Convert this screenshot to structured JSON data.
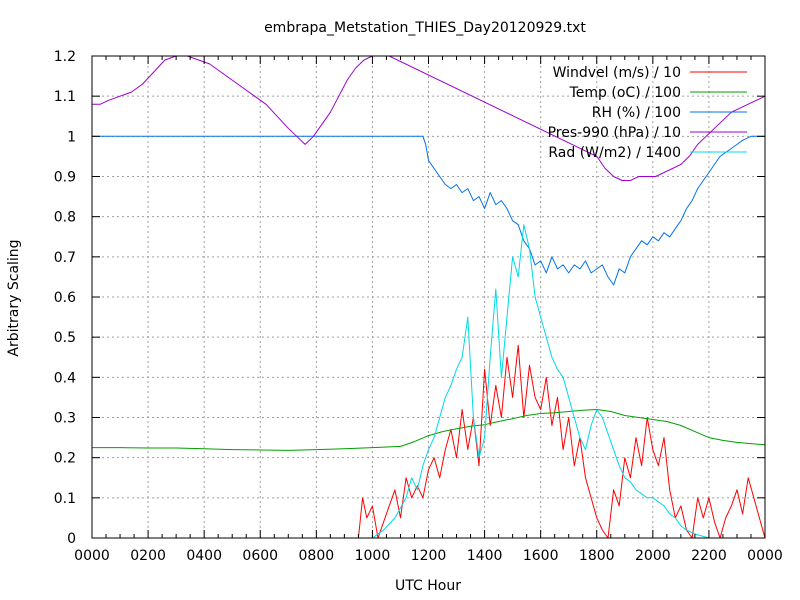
{
  "chart_data": {
    "type": "line",
    "title": "embrapa_Metstation_THIES_Day20120929.txt",
    "xlabel": "UTC Hour",
    "ylabel": "Arbitrary Scaling",
    "xlim": [
      0,
      24
    ],
    "ylim": [
      0,
      1.2
    ],
    "grid": true,
    "legend_position": "top-right",
    "x_ticks": [
      0,
      2,
      4,
      6,
      8,
      10,
      12,
      14,
      16,
      18,
      20,
      22,
      24
    ],
    "x_tick_labels": [
      "0000",
      "0200",
      "0400",
      "0600",
      "0800",
      "1000",
      "1200",
      "1400",
      "1600",
      "1800",
      "2000",
      "2200",
      "0000"
    ],
    "y_ticks": [
      0,
      0.1,
      0.2,
      0.3,
      0.4,
      0.5,
      0.6,
      0.7,
      0.8,
      0.9,
      1,
      1.1,
      1.2
    ],
    "y_tick_labels": [
      "0",
      "0.1",
      "0.2",
      "0.3",
      "0.4",
      "0.5",
      "0.6",
      "0.7",
      "0.8",
      "0.9",
      "1",
      "1.1",
      "1.2"
    ],
    "series": [
      {
        "name": "Windvel (m/s) / 10",
        "color": "#ff0000",
        "x": [
          9.5,
          9.65,
          9.8,
          10.0,
          10.2,
          10.5,
          10.8,
          11.0,
          11.2,
          11.4,
          11.6,
          11.8,
          12.0,
          12.2,
          12.4,
          12.6,
          12.8,
          13.0,
          13.2,
          13.4,
          13.6,
          13.8,
          14.0,
          14.2,
          14.4,
          14.6,
          14.8,
          15.0,
          15.2,
          15.4,
          15.6,
          15.8,
          16.0,
          16.2,
          16.4,
          16.6,
          16.8,
          17.0,
          17.2,
          17.4,
          17.6,
          17.8,
          18.0,
          18.2,
          18.4,
          18.6,
          18.8,
          19.0,
          19.2,
          19.4,
          19.6,
          19.8,
          20.0,
          20.2,
          20.4,
          20.6,
          20.8,
          21.0,
          21.2,
          21.4,
          21.6,
          21.8,
          22.0,
          22.2,
          22.4,
          22.6,
          22.8,
          23.0,
          23.2,
          23.4,
          23.6,
          23.8,
          24.0
        ],
        "y": [
          0,
          0.1,
          0.05,
          0.08,
          0.0,
          0.06,
          0.12,
          0.05,
          0.15,
          0.1,
          0.13,
          0.1,
          0.17,
          0.2,
          0.15,
          0.22,
          0.27,
          0.2,
          0.32,
          0.22,
          0.3,
          0.18,
          0.42,
          0.28,
          0.38,
          0.3,
          0.45,
          0.35,
          0.48,
          0.3,
          0.43,
          0.35,
          0.32,
          0.4,
          0.28,
          0.35,
          0.22,
          0.3,
          0.18,
          0.25,
          0.15,
          0.1,
          0.05,
          0.02,
          0.0,
          0.12,
          0.08,
          0.2,
          0.15,
          0.25,
          0.18,
          0.3,
          0.22,
          0.18,
          0.25,
          0.12,
          0.05,
          0.08,
          0.02,
          0.0,
          0.1,
          0.05,
          0.1,
          0.04,
          0.0,
          0.05,
          0.08,
          0.12,
          0.06,
          0.15,
          0.1,
          0.05,
          0.0
        ]
      },
      {
        "name": "Temp (oC) / 100",
        "color": "#00a000",
        "x": [
          0,
          1,
          2,
          3,
          4,
          5,
          6,
          7,
          8,
          9,
          10,
          11,
          11.5,
          12,
          12.5,
          13,
          13.5,
          14,
          14.5,
          15,
          15.5,
          16,
          16.5,
          17,
          17.5,
          18,
          18.5,
          19,
          19.5,
          20,
          20.5,
          21,
          21.5,
          22,
          22.5,
          23,
          23.5,
          24
        ],
        "y": [
          0.225,
          0.225,
          0.224,
          0.224,
          0.222,
          0.22,
          0.219,
          0.218,
          0.22,
          0.222,
          0.225,
          0.228,
          0.24,
          0.255,
          0.265,
          0.272,
          0.278,
          0.282,
          0.29,
          0.297,
          0.305,
          0.31,
          0.312,
          0.315,
          0.318,
          0.32,
          0.315,
          0.305,
          0.3,
          0.295,
          0.29,
          0.28,
          0.265,
          0.25,
          0.243,
          0.238,
          0.235,
          0.232
        ]
      },
      {
        "name": "RH (%) / 100",
        "color": "#0072f0",
        "x": [
          0,
          2,
          4,
          6,
          8,
          10,
          11.8,
          11.9,
          12.0,
          12.2,
          12.4,
          12.6,
          12.8,
          13.0,
          13.2,
          13.4,
          13.6,
          13.8,
          14.0,
          14.2,
          14.4,
          14.6,
          14.8,
          15.0,
          15.2,
          15.4,
          15.6,
          15.8,
          16.0,
          16.2,
          16.4,
          16.6,
          16.8,
          17.0,
          17.2,
          17.4,
          17.6,
          17.8,
          18.0,
          18.2,
          18.4,
          18.6,
          18.8,
          19.0,
          19.2,
          19.4,
          19.6,
          19.8,
          20.0,
          20.2,
          20.4,
          20.6,
          20.8,
          21.0,
          21.2,
          21.4,
          21.6,
          21.8,
          22.0,
          22.2,
          22.4,
          22.6,
          22.8,
          23.0,
          23.2,
          23.5,
          24.0
        ],
        "y": [
          1.0,
          1.0,
          1.0,
          1.0,
          1.0,
          1.0,
          1.0,
          0.98,
          0.94,
          0.92,
          0.9,
          0.88,
          0.87,
          0.88,
          0.86,
          0.87,
          0.84,
          0.85,
          0.82,
          0.86,
          0.83,
          0.84,
          0.82,
          0.79,
          0.78,
          0.74,
          0.72,
          0.68,
          0.69,
          0.66,
          0.7,
          0.67,
          0.68,
          0.66,
          0.68,
          0.67,
          0.69,
          0.66,
          0.67,
          0.68,
          0.65,
          0.63,
          0.67,
          0.66,
          0.7,
          0.72,
          0.74,
          0.73,
          0.75,
          0.74,
          0.76,
          0.75,
          0.77,
          0.79,
          0.82,
          0.84,
          0.87,
          0.89,
          0.91,
          0.93,
          0.95,
          0.96,
          0.97,
          0.98,
          0.99,
          1.0,
          1.0
        ]
      },
      {
        "name": "Pres-990 (hPa) / 10",
        "color": "#a000d0",
        "x": [
          0,
          0.3,
          0.6,
          1.0,
          1.4,
          1.8,
          2.2,
          2.6,
          3.0,
          3.4,
          3.8,
          4.2,
          4.6,
          5.0,
          5.4,
          5.8,
          6.2,
          6.6,
          7.0,
          7.3,
          7.6,
          7.9,
          8.2,
          8.5,
          8.8,
          9.1,
          9.4,
          9.7,
          10.0,
          10.3,
          10.6,
          18.0,
          18.3,
          18.6,
          18.9,
          19.2,
          19.5,
          19.8,
          20.1,
          20.4,
          20.7,
          21.0,
          21.3,
          21.6,
          21.9,
          22.2,
          22.5,
          22.8,
          23.1,
          23.4,
          23.7,
          24.0
        ],
        "y": [
          1.08,
          1.08,
          1.09,
          1.1,
          1.11,
          1.13,
          1.16,
          1.19,
          1.2,
          1.2,
          1.19,
          1.18,
          1.16,
          1.14,
          1.12,
          1.1,
          1.08,
          1.05,
          1.02,
          1.0,
          0.98,
          1.0,
          1.03,
          1.06,
          1.1,
          1.14,
          1.17,
          1.19,
          1.2,
          1.2,
          1.2,
          0.95,
          0.92,
          0.9,
          0.89,
          0.89,
          0.9,
          0.9,
          0.9,
          0.91,
          0.92,
          0.93,
          0.95,
          0.98,
          1.0,
          1.02,
          1.04,
          1.06,
          1.07,
          1.08,
          1.09,
          1.1
        ]
      },
      {
        "name": "Rad (W/m2) / 1400",
        "color": "#00d8e8",
        "x": [
          9.5,
          10.0,
          10.4,
          10.8,
          11.2,
          11.4,
          11.6,
          11.8,
          12.0,
          12.2,
          12.4,
          12.6,
          12.8,
          13.0,
          13.2,
          13.4,
          13.6,
          13.8,
          14.0,
          14.2,
          14.4,
          14.6,
          14.8,
          15.0,
          15.2,
          15.4,
          15.6,
          15.8,
          16.0,
          16.2,
          16.4,
          16.6,
          16.8,
          17.0,
          17.2,
          17.4,
          17.6,
          17.8,
          18.0,
          18.2,
          18.4,
          18.6,
          18.8,
          19.0,
          19.2,
          19.4,
          19.6,
          19.8,
          20.0,
          20.2,
          20.4,
          20.6,
          20.8,
          21.0,
          21.2,
          21.5,
          22.0
        ],
        "y": [
          0,
          0.0,
          0.02,
          0.05,
          0.1,
          0.15,
          0.12,
          0.18,
          0.22,
          0.25,
          0.3,
          0.35,
          0.38,
          0.42,
          0.45,
          0.55,
          0.3,
          0.2,
          0.25,
          0.45,
          0.62,
          0.4,
          0.55,
          0.7,
          0.65,
          0.78,
          0.72,
          0.6,
          0.55,
          0.5,
          0.45,
          0.42,
          0.4,
          0.35,
          0.3,
          0.25,
          0.22,
          0.28,
          0.32,
          0.3,
          0.26,
          0.22,
          0.18,
          0.15,
          0.14,
          0.12,
          0.11,
          0.1,
          0.1,
          0.09,
          0.08,
          0.06,
          0.05,
          0.03,
          0.02,
          0.01,
          0
        ]
      }
    ]
  }
}
